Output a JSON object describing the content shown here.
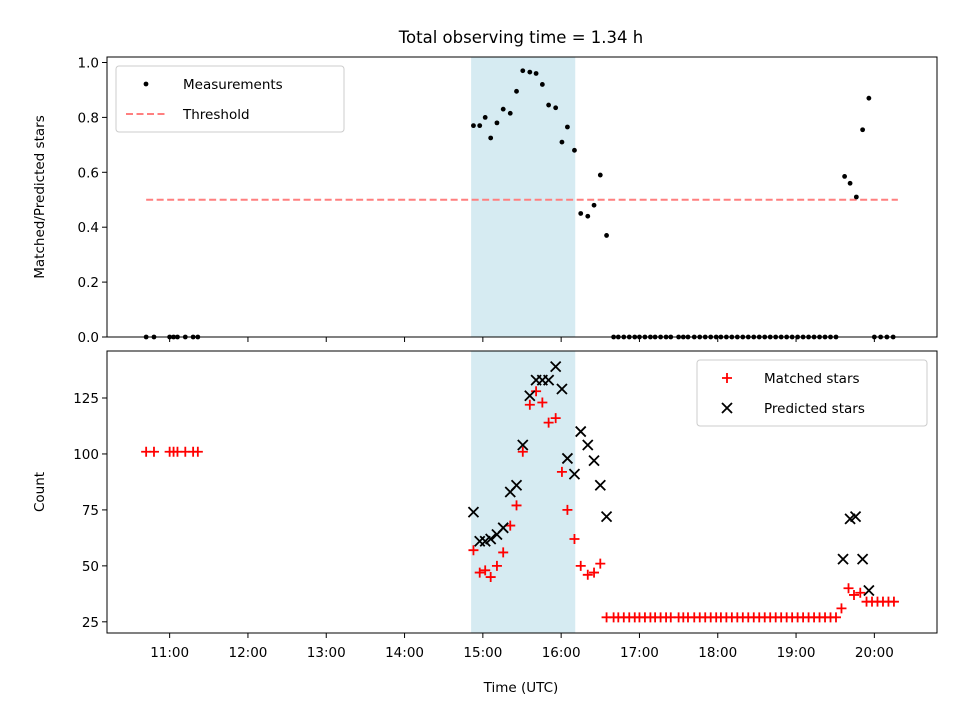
{
  "chart_data": {
    "title": "Total observing time = 1.34 h",
    "xlabel": "Time (UTC)",
    "x_unit": "hours UTC",
    "xlim": [
      10.2,
      20.8
    ],
    "xticks": [
      {
        "value": 11,
        "label": "11:00"
      },
      {
        "value": 12,
        "label": "12:00"
      },
      {
        "value": 13,
        "label": "13:00"
      },
      {
        "value": 14,
        "label": "14:00"
      },
      {
        "value": 15,
        "label": "15:00"
      },
      {
        "value": 16,
        "label": "16:00"
      },
      {
        "value": 17,
        "label": "17:00"
      },
      {
        "value": 18,
        "label": "18:00"
      },
      {
        "value": 19,
        "label": "19:00"
      },
      {
        "value": 20,
        "label": "20:00"
      }
    ],
    "shaded_region": {
      "x": [
        14.85,
        16.18
      ],
      "color": "#add8e6"
    },
    "colors": {
      "measurements": "#000000",
      "threshold": "#ff7f7f",
      "matched": "#ff0000",
      "predicted": "#000000"
    },
    "panels": [
      {
        "type": "scatter",
        "ylabel": "Matched/Predicted stars",
        "ylim": [
          0,
          1.02
        ],
        "yticks": [
          0.0,
          0.2,
          0.4,
          0.6,
          0.8,
          1.0
        ],
        "ytick_labels": [
          "0.0",
          "0.2",
          "0.4",
          "0.6",
          "0.8",
          "1.0"
        ],
        "legend": {
          "position": "top-left",
          "entries": [
            "Measurements",
            "Threshold"
          ]
        },
        "threshold": {
          "name": "Threshold",
          "y": 0.5,
          "x": [
            10.7,
            20.3
          ]
        },
        "series": [
          {
            "name": "Measurements",
            "points": [
              [
                10.7,
                0
              ],
              [
                10.8,
                0
              ],
              [
                11.0,
                0
              ],
              [
                11.05,
                0
              ],
              [
                11.1,
                0
              ],
              [
                11.2,
                0
              ],
              [
                11.3,
                0
              ],
              [
                11.36,
                0
              ],
              [
                14.88,
                0.77
              ],
              [
                14.96,
                0.77
              ],
              [
                15.03,
                0.8
              ],
              [
                15.1,
                0.725
              ],
              [
                15.18,
                0.78
              ],
              [
                15.26,
                0.83
              ],
              [
                15.35,
                0.815
              ],
              [
                15.43,
                0.895
              ],
              [
                15.51,
                0.97
              ],
              [
                15.6,
                0.965
              ],
              [
                15.68,
                0.96
              ],
              [
                15.76,
                0.92
              ],
              [
                15.84,
                0.845
              ],
              [
                15.93,
                0.835
              ],
              [
                16.01,
                0.71
              ],
              [
                16.08,
                0.765
              ],
              [
                16.17,
                0.68
              ],
              [
                16.25,
                0.45
              ],
              [
                16.34,
                0.44
              ],
              [
                16.42,
                0.48
              ],
              [
                16.5,
                0.59
              ],
              [
                16.58,
                0.37
              ],
              [
                16.67,
                0
              ],
              [
                16.73,
                0
              ],
              [
                16.8,
                0
              ],
              [
                16.87,
                0
              ],
              [
                16.94,
                0
              ],
              [
                17.0,
                0
              ],
              [
                17.07,
                0
              ],
              [
                17.14,
                0
              ],
              [
                17.2,
                0
              ],
              [
                17.27,
                0
              ],
              [
                17.34,
                0
              ],
              [
                17.4,
                0
              ],
              [
                17.5,
                0
              ],
              [
                17.56,
                0
              ],
              [
                17.62,
                0
              ],
              [
                17.7,
                0
              ],
              [
                17.77,
                0
              ],
              [
                17.84,
                0
              ],
              [
                17.91,
                0
              ],
              [
                17.98,
                0
              ],
              [
                18.04,
                0
              ],
              [
                18.11,
                0
              ],
              [
                18.18,
                0
              ],
              [
                18.25,
                0
              ],
              [
                18.32,
                0
              ],
              [
                18.39,
                0
              ],
              [
                18.46,
                0
              ],
              [
                18.53,
                0
              ],
              [
                18.6,
                0
              ],
              [
                18.67,
                0
              ],
              [
                18.74,
                0
              ],
              [
                18.81,
                0
              ],
              [
                18.88,
                0
              ],
              [
                18.95,
                0
              ],
              [
                19.02,
                0
              ],
              [
                19.09,
                0
              ],
              [
                19.16,
                0
              ],
              [
                19.23,
                0
              ],
              [
                19.3,
                0
              ],
              [
                19.37,
                0
              ],
              [
                19.44,
                0
              ],
              [
                19.51,
                0
              ],
              [
                19.62,
                0.585
              ],
              [
                19.69,
                0.56
              ],
              [
                19.77,
                0.51
              ],
              [
                19.85,
                0.755
              ],
              [
                19.93,
                0.87
              ],
              [
                20.0,
                0
              ],
              [
                20.08,
                0
              ],
              [
                20.16,
                0
              ],
              [
                20.24,
                0
              ]
            ]
          }
        ]
      },
      {
        "type": "scatter",
        "ylabel": "Count",
        "ylim": [
          20,
          146
        ],
        "yticks": [
          25,
          50,
          75,
          100,
          125
        ],
        "ytick_labels": [
          "25",
          "50",
          "75",
          "100",
          "125"
        ],
        "legend": {
          "position": "top-right",
          "entries": [
            "Matched stars",
            "Predicted stars"
          ]
        },
        "series": [
          {
            "name": "Matched stars",
            "marker": "plus",
            "points": [
              [
                10.7,
                101
              ],
              [
                10.8,
                101
              ],
              [
                11.0,
                101
              ],
              [
                11.05,
                101
              ],
              [
                11.1,
                101
              ],
              [
                11.2,
                101
              ],
              [
                11.3,
                101
              ],
              [
                11.36,
                101
              ],
              [
                14.88,
                57
              ],
              [
                14.96,
                47
              ],
              [
                15.03,
                48
              ],
              [
                15.1,
                45
              ],
              [
                15.18,
                50
              ],
              [
                15.26,
                56
              ],
              [
                15.35,
                68
              ],
              [
                15.43,
                77
              ],
              [
                15.51,
                101
              ],
              [
                15.6,
                122
              ],
              [
                15.68,
                128
              ],
              [
                15.76,
                123
              ],
              [
                15.84,
                114
              ],
              [
                15.93,
                116
              ],
              [
                16.01,
                92
              ],
              [
                16.08,
                75
              ],
              [
                16.17,
                62
              ],
              [
                16.25,
                50
              ],
              [
                16.34,
                46
              ],
              [
                16.42,
                47
              ],
              [
                16.5,
                51
              ],
              [
                16.58,
                27
              ],
              [
                16.67,
                27
              ],
              [
                16.73,
                27
              ],
              [
                16.8,
                27
              ],
              [
                16.87,
                27
              ],
              [
                16.94,
                27
              ],
              [
                17.0,
                27
              ],
              [
                17.07,
                27
              ],
              [
                17.14,
                27
              ],
              [
                17.2,
                27
              ],
              [
                17.27,
                27
              ],
              [
                17.34,
                27
              ],
              [
                17.4,
                27
              ],
              [
                17.5,
                27
              ],
              [
                17.56,
                27
              ],
              [
                17.62,
                27
              ],
              [
                17.7,
                27
              ],
              [
                17.77,
                27
              ],
              [
                17.84,
                27
              ],
              [
                17.91,
                27
              ],
              [
                17.98,
                27
              ],
              [
                18.04,
                27
              ],
              [
                18.11,
                27
              ],
              [
                18.18,
                27
              ],
              [
                18.25,
                27
              ],
              [
                18.32,
                27
              ],
              [
                18.39,
                27
              ],
              [
                18.46,
                27
              ],
              [
                18.53,
                27
              ],
              [
                18.6,
                27
              ],
              [
                18.67,
                27
              ],
              [
                18.74,
                27
              ],
              [
                18.81,
                27
              ],
              [
                18.88,
                27
              ],
              [
                18.95,
                27
              ],
              [
                19.02,
                27
              ],
              [
                19.09,
                27
              ],
              [
                19.16,
                27
              ],
              [
                19.23,
                27
              ],
              [
                19.3,
                27
              ],
              [
                19.37,
                27
              ],
              [
                19.44,
                27
              ],
              [
                19.51,
                27
              ],
              [
                19.58,
                31
              ],
              [
                19.67,
                40
              ],
              [
                19.74,
                37
              ],
              [
                19.82,
                38
              ],
              [
                19.9,
                34
              ],
              [
                19.97,
                34
              ],
              [
                20.04,
                34
              ],
              [
                20.11,
                34
              ],
              [
                20.18,
                34
              ],
              [
                20.25,
                34
              ]
            ]
          },
          {
            "name": "Predicted stars",
            "marker": "x",
            "points": [
              [
                14.88,
                74
              ],
              [
                14.96,
                61
              ],
              [
                15.03,
                61
              ],
              [
                15.1,
                62
              ],
              [
                15.18,
                64
              ],
              [
                15.26,
                67
              ],
              [
                15.35,
                83
              ],
              [
                15.43,
                86
              ],
              [
                15.51,
                104
              ],
              [
                15.6,
                126
              ],
              [
                15.68,
                133
              ],
              [
                15.76,
                133
              ],
              [
                15.84,
                133
              ],
              [
                15.93,
                139
              ],
              [
                16.01,
                129
              ],
              [
                16.08,
                98
              ],
              [
                16.17,
                91
              ],
              [
                16.25,
                110
              ],
              [
                16.34,
                104
              ],
              [
                16.42,
                97
              ],
              [
                16.5,
                86
              ],
              [
                16.58,
                72
              ],
              [
                19.6,
                53
              ],
              [
                19.69,
                71
              ],
              [
                19.76,
                72
              ],
              [
                19.85,
                53
              ],
              [
                19.93,
                39
              ]
            ]
          }
        ]
      }
    ]
  }
}
